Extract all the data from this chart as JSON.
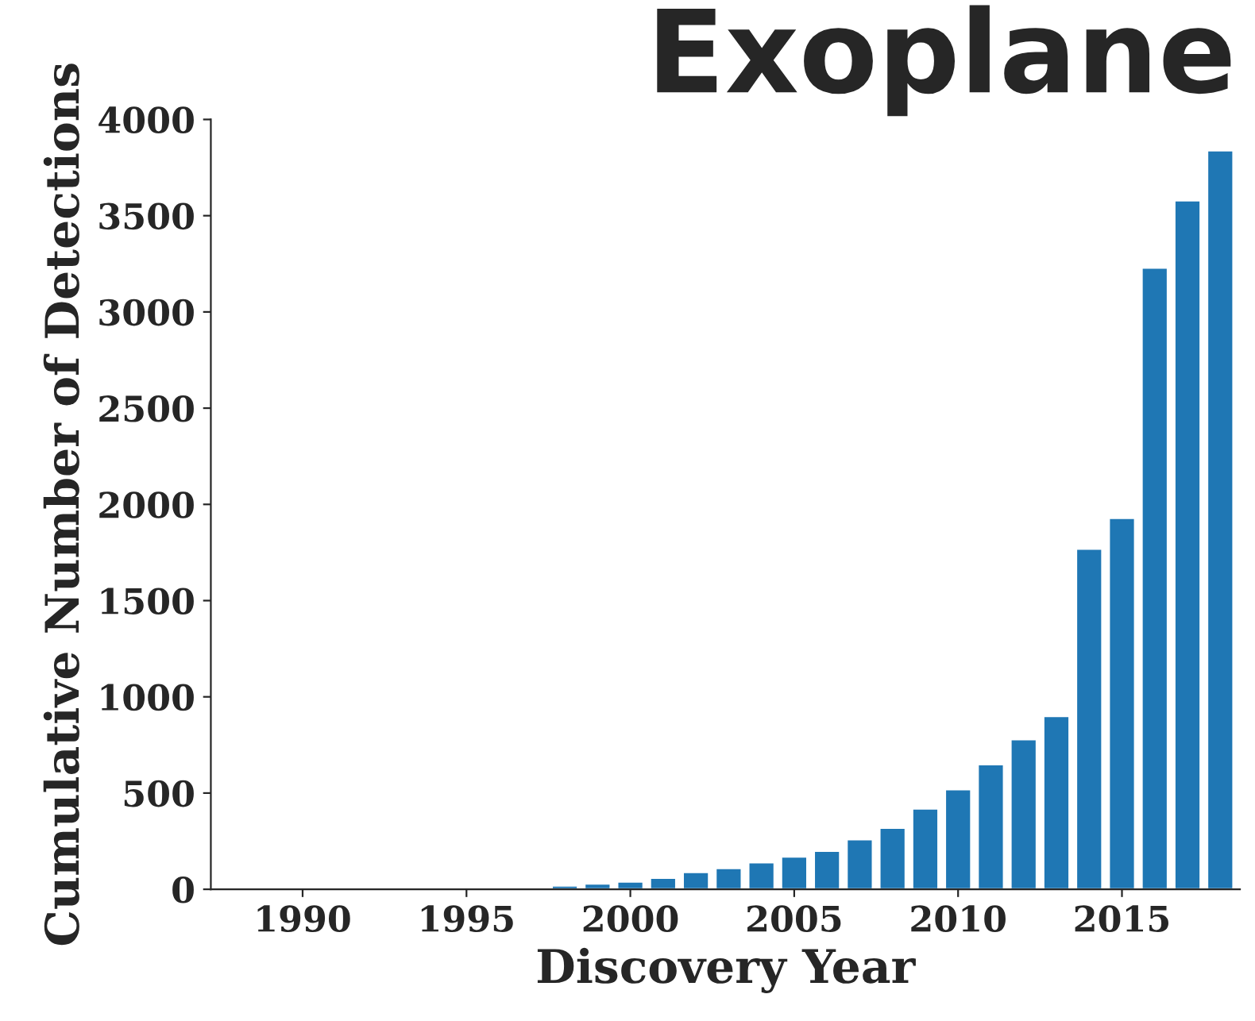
{
  "chart_data": {
    "type": "bar",
    "title": "Exoplane",
    "xlabel": "Discovery Year",
    "ylabel": "Cumulative Number of Detections",
    "x": [
      1998,
      1999,
      2000,
      2001,
      2002,
      2003,
      2004,
      2005,
      2006,
      2007,
      2008,
      2009,
      2010,
      2011,
      2012,
      2013,
      2014,
      2015,
      2016,
      2017,
      2018
    ],
    "values": [
      20,
      30,
      40,
      60,
      90,
      110,
      140,
      170,
      200,
      260,
      320,
      420,
      520,
      650,
      780,
      900,
      1770,
      1930,
      3230,
      3580,
      3840
    ],
    "color": "#1f77b4",
    "xlim": [
      1987.2,
      2018.6
    ],
    "xticks": [
      1990,
      1995,
      2000,
      2005,
      2010,
      2015
    ],
    "ylim": [
      0,
      4000
    ],
    "yticks": [
      0,
      500,
      1000,
      1500,
      2000,
      2500,
      3000,
      3500,
      4000
    ],
    "grid": false,
    "legend": false
  }
}
